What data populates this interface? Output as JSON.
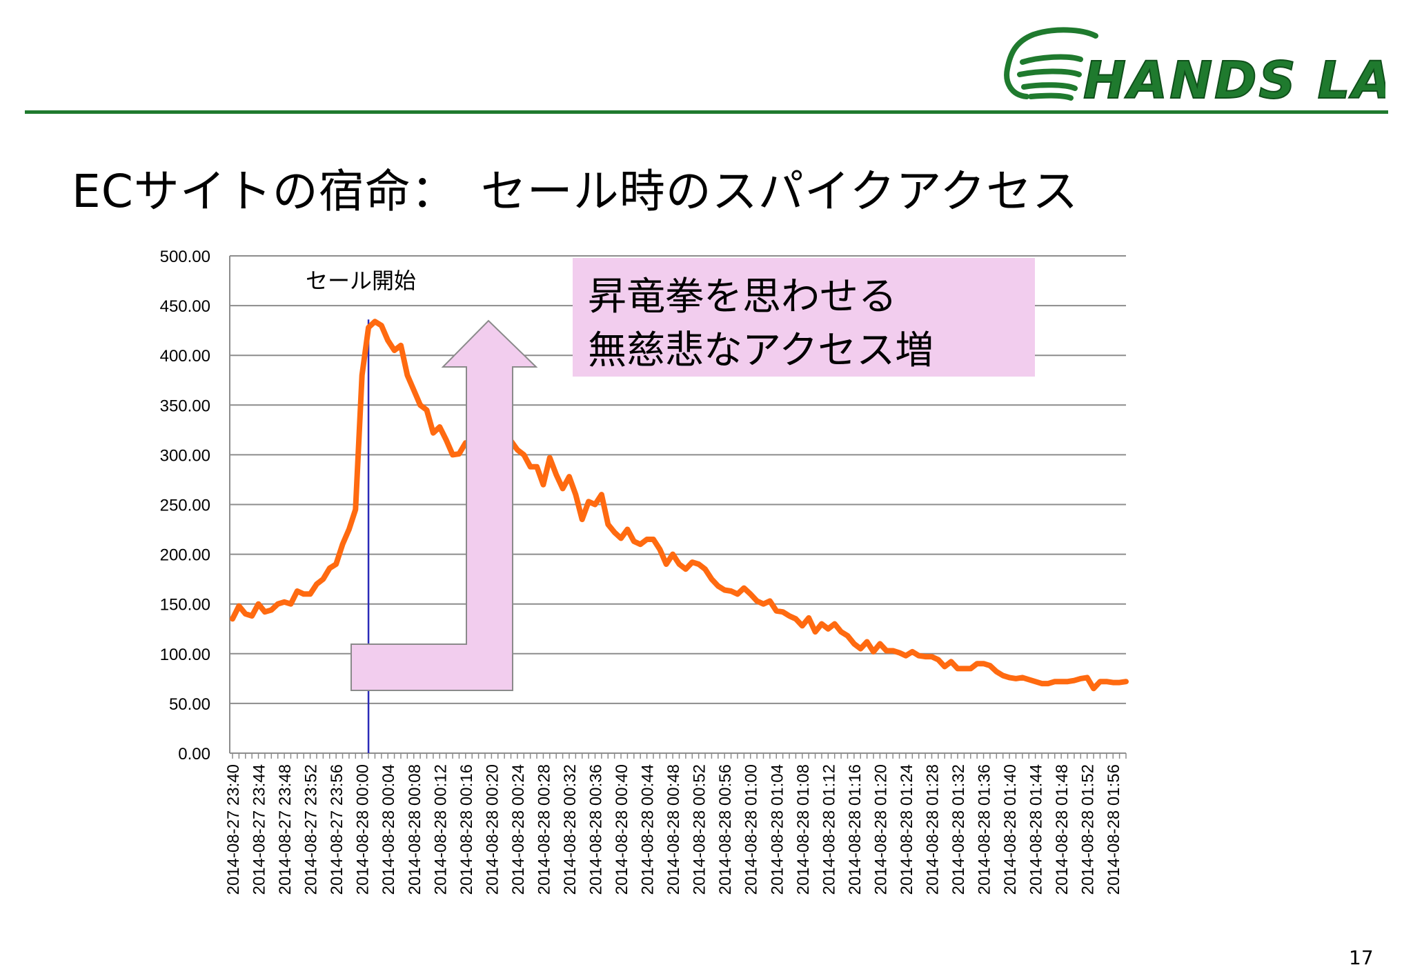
{
  "slide": {
    "title": "ECサイトの宿命：　セール時のスパイクアクセス",
    "page_number": "17",
    "logo_text": "HANDS LAB",
    "callout_lines": [
      "昇竜拳を思わせる",
      "無慈悲なアクセス増"
    ]
  },
  "colors": {
    "line": "#ff6a10",
    "marker": "#2a2ab8",
    "arrow_fill": "#f2cdee",
    "rule": "#1f7a2e",
    "grid": "#8c8c8c"
  },
  "chart_data": {
    "type": "line",
    "title": "",
    "xlabel": "",
    "ylabel": "",
    "ylim": [
      0,
      500
    ],
    "yticks": [
      "0.00",
      "50.00",
      "100.00",
      "150.00",
      "200.00",
      "250.00",
      "300.00",
      "350.00",
      "400.00",
      "450.00",
      "500.00"
    ],
    "grid": true,
    "x_tick_labels": [
      "2014-08-27 23:40",
      "2014-08-27 23:44",
      "2014-08-27 23:48",
      "2014-08-27 23:52",
      "2014-08-27 23:56",
      "2014-08-28 00:00",
      "2014-08-28 00:04",
      "2014-08-28 00:08",
      "2014-08-28 00:12",
      "2014-08-28 00:16",
      "2014-08-28 00:20",
      "2014-08-28 00:24",
      "2014-08-28 00:28",
      "2014-08-28 00:32",
      "2014-08-28 00:36",
      "2014-08-28 00:40",
      "2014-08-28 00:44",
      "2014-08-28 00:48",
      "2014-08-28 00:52",
      "2014-08-28 00:56",
      "2014-08-28 01:00",
      "2014-08-28 01:04",
      "2014-08-28 01:08",
      "2014-08-28 01:12",
      "2014-08-28 01:16",
      "2014-08-28 01:20",
      "2014-08-28 01:24",
      "2014-08-28 01:28",
      "2014-08-28 01:32",
      "2014-08-28 01:36",
      "2014-08-28 01:40",
      "2014-08-28 01:44",
      "2014-08-28 01:48",
      "2014-08-28 01:52",
      "2014-08-28 01:56"
    ],
    "x_start": "2014-08-27 23:40",
    "x_interval_seconds": 60,
    "annotations": [
      {
        "text": "セール開始",
        "x": "2014-08-28 00:01"
      }
    ],
    "series": [
      {
        "values": [
          135,
          148,
          140,
          138,
          150,
          142,
          144,
          150,
          152,
          150,
          163,
          160,
          160,
          170,
          175,
          186,
          190,
          210,
          225,
          245,
          380,
          428,
          434,
          430,
          415,
          405,
          410,
          380,
          365,
          350,
          345,
          322,
          328,
          315,
          300,
          301,
          312,
          305,
          290,
          292,
          300,
          302,
          308,
          314,
          305,
          300,
          288,
          288,
          270,
          297,
          280,
          266,
          278,
          260,
          235,
          253,
          250,
          260,
          230,
          222,
          216,
          225,
          213,
          210,
          215,
          215,
          205,
          190,
          200,
          190,
          185,
          192,
          190,
          185,
          175,
          168,
          164,
          163,
          160,
          166,
          160,
          153,
          150,
          153,
          143,
          142,
          138,
          135,
          128,
          136,
          122,
          130,
          125,
          130,
          122,
          118,
          110,
          105,
          112,
          102,
          110,
          103,
          103,
          101,
          98,
          102,
          98,
          97,
          97,
          94,
          87,
          92,
          85,
          85,
          85,
          90,
          90,
          88,
          82,
          78,
          76,
          75,
          76,
          74,
          72,
          70,
          70,
          72,
          72,
          72,
          73,
          75,
          76,
          65,
          72,
          72,
          71,
          71,
          72
        ]
      }
    ]
  }
}
